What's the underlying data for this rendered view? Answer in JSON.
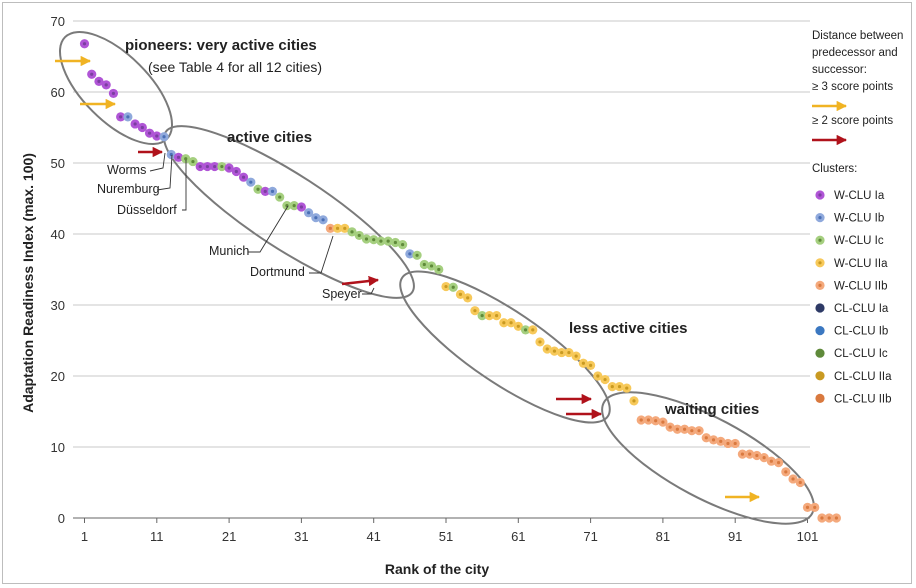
{
  "chart_data": {
    "type": "scatter",
    "xlabel": "Rank of the city",
    "ylabel": "Adaptation Readiness Index (max. 100)",
    "xlim": [
      0,
      105
    ],
    "ylim": [
      0,
      70
    ],
    "x_ticks": [
      1,
      11,
      21,
      31,
      41,
      51,
      61,
      71,
      81,
      91,
      101
    ],
    "y_ticks": [
      0,
      10,
      20,
      30,
      40,
      50,
      60,
      70
    ],
    "grid": "horizontal",
    "points": [
      {
        "x": 1,
        "y": 66.8,
        "c": "W-CLU Ia"
      },
      {
        "x": 2,
        "y": 62.5,
        "c": "W-CLU Ia"
      },
      {
        "x": 3,
        "y": 61.5,
        "c": "W-CLU Ia"
      },
      {
        "x": 4,
        "y": 61.0,
        "c": "W-CLU Ia"
      },
      {
        "x": 5,
        "y": 59.8,
        "c": "W-CLU Ia"
      },
      {
        "x": 6,
        "y": 56.5,
        "c": "W-CLU Ia"
      },
      {
        "x": 7,
        "y": 56.5,
        "c": "W-CLU Ib"
      },
      {
        "x": 8,
        "y": 55.5,
        "c": "W-CLU Ia"
      },
      {
        "x": 9,
        "y": 55.0,
        "c": "W-CLU Ia"
      },
      {
        "x": 10,
        "y": 54.2,
        "c": "W-CLU Ia"
      },
      {
        "x": 11,
        "y": 53.8,
        "c": "W-CLU Ia"
      },
      {
        "x": 12,
        "y": 53.7,
        "c": "W-CLU Ib"
      },
      {
        "x": 13,
        "y": 51.2,
        "c": "W-CLU Ib"
      },
      {
        "x": 14,
        "y": 50.8,
        "c": "W-CLU Ia"
      },
      {
        "x": 15,
        "y": 50.6,
        "c": "W-CLU Ic"
      },
      {
        "x": 16,
        "y": 50.2,
        "c": "W-CLU Ic"
      },
      {
        "x": 17,
        "y": 49.5,
        "c": "W-CLU Ia"
      },
      {
        "x": 18,
        "y": 49.5,
        "c": "W-CLU Ia"
      },
      {
        "x": 19,
        "y": 49.5,
        "c": "W-CLU Ia"
      },
      {
        "x": 20,
        "y": 49.5,
        "c": "W-CLU Ic"
      },
      {
        "x": 21,
        "y": 49.3,
        "c": "W-CLU Ia"
      },
      {
        "x": 22,
        "y": 48.8,
        "c": "W-CLU Ia"
      },
      {
        "x": 23,
        "y": 48.0,
        "c": "W-CLU Ia"
      },
      {
        "x": 24,
        "y": 47.3,
        "c": "W-CLU Ib"
      },
      {
        "x": 25,
        "y": 46.3,
        "c": "W-CLU Ic"
      },
      {
        "x": 26,
        "y": 46.0,
        "c": "W-CLU Ia"
      },
      {
        "x": 27,
        "y": 46.0,
        "c": "W-CLU Ib"
      },
      {
        "x": 28,
        "y": 45.2,
        "c": "W-CLU Ic"
      },
      {
        "x": 29,
        "y": 44.0,
        "c": "W-CLU Ic"
      },
      {
        "x": 30,
        "y": 44.0,
        "c": "W-CLU Ic"
      },
      {
        "x": 31,
        "y": 43.8,
        "c": "W-CLU Ia"
      },
      {
        "x": 32,
        "y": 43.0,
        "c": "W-CLU Ib"
      },
      {
        "x": 33,
        "y": 42.3,
        "c": "W-CLU Ib"
      },
      {
        "x": 34,
        "y": 42.0,
        "c": "W-CLU Ib"
      },
      {
        "x": 35,
        "y": 40.8,
        "c": "W-CLU IIb"
      },
      {
        "x": 36,
        "y": 40.8,
        "c": "W-CLU IIa"
      },
      {
        "x": 37,
        "y": 40.8,
        "c": "W-CLU IIa"
      },
      {
        "x": 38,
        "y": 40.3,
        "c": "W-CLU Ic"
      },
      {
        "x": 39,
        "y": 39.8,
        "c": "W-CLU Ic"
      },
      {
        "x": 40,
        "y": 39.3,
        "c": "W-CLU Ic"
      },
      {
        "x": 41,
        "y": 39.2,
        "c": "W-CLU Ic"
      },
      {
        "x": 42,
        "y": 39.0,
        "c": "W-CLU Ic"
      },
      {
        "x": 43,
        "y": 39.0,
        "c": "W-CLU Ic"
      },
      {
        "x": 44,
        "y": 38.8,
        "c": "W-CLU Ic"
      },
      {
        "x": 45,
        "y": 38.5,
        "c": "W-CLU Ic"
      },
      {
        "x": 46,
        "y": 37.2,
        "c": "W-CLU Ib"
      },
      {
        "x": 47,
        "y": 37.0,
        "c": "W-CLU Ic"
      },
      {
        "x": 48,
        "y": 35.7,
        "c": "W-CLU Ic"
      },
      {
        "x": 49,
        "y": 35.5,
        "c": "W-CLU Ic"
      },
      {
        "x": 50,
        "y": 35.0,
        "c": "W-CLU Ic"
      },
      {
        "x": 51,
        "y": 32.6,
        "c": "W-CLU IIa"
      },
      {
        "x": 52,
        "y": 32.5,
        "c": "W-CLU Ic"
      },
      {
        "x": 53,
        "y": 31.5,
        "c": "W-CLU IIa"
      },
      {
        "x": 54,
        "y": 31.0,
        "c": "W-CLU IIa"
      },
      {
        "x": 55,
        "y": 29.2,
        "c": "W-CLU IIa"
      },
      {
        "x": 56,
        "y": 28.5,
        "c": "W-CLU Ic"
      },
      {
        "x": 57,
        "y": 28.5,
        "c": "W-CLU IIa"
      },
      {
        "x": 58,
        "y": 28.5,
        "c": "W-CLU IIa"
      },
      {
        "x": 59,
        "y": 27.5,
        "c": "W-CLU IIa"
      },
      {
        "x": 60,
        "y": 27.5,
        "c": "W-CLU IIa"
      },
      {
        "x": 61,
        "y": 27.0,
        "c": "W-CLU IIa"
      },
      {
        "x": 62,
        "y": 26.5,
        "c": "W-CLU Ic"
      },
      {
        "x": 63,
        "y": 26.5,
        "c": "W-CLU IIa"
      },
      {
        "x": 64,
        "y": 24.8,
        "c": "W-CLU IIa"
      },
      {
        "x": 65,
        "y": 23.8,
        "c": "W-CLU IIa"
      },
      {
        "x": 66,
        "y": 23.5,
        "c": "W-CLU IIa"
      },
      {
        "x": 67,
        "y": 23.3,
        "c": "W-CLU IIa"
      },
      {
        "x": 68,
        "y": 23.3,
        "c": "W-CLU IIa"
      },
      {
        "x": 69,
        "y": 22.8,
        "c": "W-CLU IIa"
      },
      {
        "x": 70,
        "y": 21.8,
        "c": "W-CLU IIa"
      },
      {
        "x": 71,
        "y": 21.5,
        "c": "W-CLU IIa"
      },
      {
        "x": 72,
        "y": 20.0,
        "c": "W-CLU IIa"
      },
      {
        "x": 73,
        "y": 19.5,
        "c": "W-CLU IIa"
      },
      {
        "x": 74,
        "y": 18.5,
        "c": "W-CLU IIa"
      },
      {
        "x": 75,
        "y": 18.5,
        "c": "W-CLU IIa"
      },
      {
        "x": 76,
        "y": 18.3,
        "c": "W-CLU IIa"
      },
      {
        "x": 77,
        "y": 16.5,
        "c": "W-CLU IIa"
      },
      {
        "x": 78,
        "y": 13.8,
        "c": "W-CLU IIb"
      },
      {
        "x": 79,
        "y": 13.8,
        "c": "W-CLU IIb"
      },
      {
        "x": 80,
        "y": 13.7,
        "c": "W-CLU IIb"
      },
      {
        "x": 81,
        "y": 13.5,
        "c": "W-CLU IIb"
      },
      {
        "x": 82,
        "y": 12.8,
        "c": "W-CLU IIb"
      },
      {
        "x": 83,
        "y": 12.5,
        "c": "W-CLU IIb"
      },
      {
        "x": 84,
        "y": 12.5,
        "c": "W-CLU IIb"
      },
      {
        "x": 85,
        "y": 12.3,
        "c": "W-CLU IIb"
      },
      {
        "x": 86,
        "y": 12.3,
        "c": "W-CLU IIb"
      },
      {
        "x": 87,
        "y": 11.3,
        "c": "W-CLU IIb"
      },
      {
        "x": 88,
        "y": 11.0,
        "c": "W-CLU IIb"
      },
      {
        "x": 89,
        "y": 10.8,
        "c": "W-CLU IIb"
      },
      {
        "x": 90,
        "y": 10.5,
        "c": "W-CLU IIb"
      },
      {
        "x": 91,
        "y": 10.5,
        "c": "W-CLU IIb"
      },
      {
        "x": 92,
        "y": 9.0,
        "c": "W-CLU IIb"
      },
      {
        "x": 93,
        "y": 9.0,
        "c": "W-CLU IIb"
      },
      {
        "x": 94,
        "y": 8.8,
        "c": "W-CLU IIb"
      },
      {
        "x": 95,
        "y": 8.5,
        "c": "W-CLU IIb"
      },
      {
        "x": 96,
        "y": 8.0,
        "c": "W-CLU IIb"
      },
      {
        "x": 97,
        "y": 7.8,
        "c": "W-CLU IIb"
      },
      {
        "x": 98,
        "y": 6.5,
        "c": "W-CLU IIb"
      },
      {
        "x": 99,
        "y": 5.5,
        "c": "W-CLU IIb"
      },
      {
        "x": 100,
        "y": 5.0,
        "c": "W-CLU IIb"
      },
      {
        "x": 101,
        "y": 1.5,
        "c": "W-CLU IIb"
      },
      {
        "x": 102,
        "y": 1.5,
        "c": "W-CLU IIb"
      },
      {
        "x": 103,
        "y": 0.0,
        "c": "W-CLU IIb"
      },
      {
        "x": 104,
        "y": 0.0,
        "c": "W-CLU IIb"
      },
      {
        "x": 105,
        "y": 0.0,
        "c": "W-CLU IIb"
      }
    ],
    "clusters": [
      {
        "name": "W-CLU Ia",
        "outer": "#b055d6",
        "inner": "#7b3fa0"
      },
      {
        "name": "W-CLU Ib",
        "outer": "#8fa9dc",
        "inner": "#4a6fb5"
      },
      {
        "name": "W-CLU Ic",
        "outer": "#a5cf7f",
        "inner": "#5f8a3a"
      },
      {
        "name": "W-CLU IIa",
        "outer": "#f7c95a",
        "inner": "#c99a22"
      },
      {
        "name": "W-CLU IIb",
        "outer": "#f4a97c",
        "inner": "#d9793f"
      },
      {
        "name": "CL-CLU Ia",
        "outer": "#2e3a66",
        "inner": "#2e3a66"
      },
      {
        "name": "CL-CLU Ib",
        "outer": "#3b78c1",
        "inner": "#3b78c1"
      },
      {
        "name": "CL-CLU Ic",
        "outer": "#5f8a3a",
        "inner": "#5f8a3a"
      },
      {
        "name": "CL-CLU IIa",
        "outer": "#c99a22",
        "inner": "#c99a22"
      },
      {
        "name": "CL-CLU IIb",
        "outer": "#d9793f",
        "inner": "#d9793f"
      }
    ],
    "groups": [
      {
        "label": "pioneers: very active cities",
        "sub": "(see Table 4 for all 12 cities)"
      },
      {
        "label": "active cities"
      },
      {
        "label": "less active cities"
      },
      {
        "label": "waiting cities"
      }
    ],
    "city_labels": [
      "Worms",
      "Nuremburg",
      "Düsseldorf",
      "Munich",
      "Dortmund",
      "Speyer"
    ],
    "legend": {
      "distance_title": [
        "Distance between",
        "predecessor and",
        "successor:"
      ],
      "three_points": "≥ 3 score points",
      "two_points": "≥ 2 score points",
      "clusters_title": "Clusters:"
    },
    "colors": {
      "yellow_arrow": "#f0b323",
      "red_arrow": "#b0121b",
      "grid": "#c8c8c8",
      "ellipse": "#7a7a7a"
    }
  }
}
